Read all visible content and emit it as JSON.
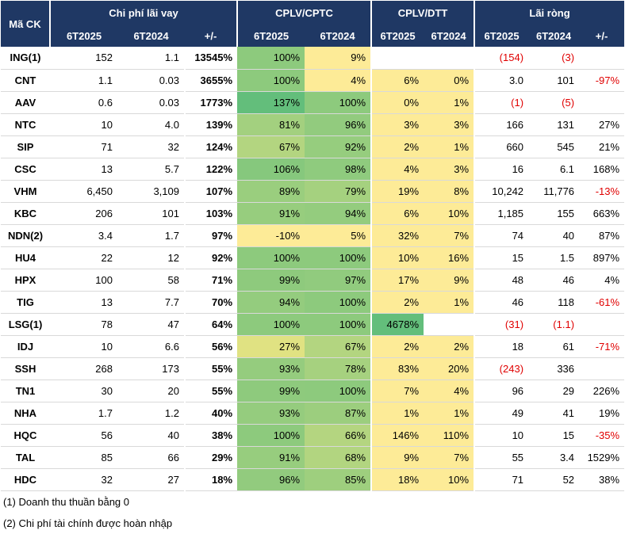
{
  "header": {
    "ma_ck": "Mã CK",
    "group1": "Chi phí lãi vay",
    "group2": "CPLV/CPTC",
    "group3": "CPLV/DTT",
    "group4": "Lãi ròng",
    "sub": [
      "6T2025",
      "6T2024",
      "+/-",
      "6T2025",
      "6T2024",
      "6T2025",
      "6T2024",
      "6T2025",
      "6T2024",
      "+/-"
    ]
  },
  "rows": [
    {
      "ck": "ING(1)",
      "lv25": "152",
      "lv24": "1.1",
      "lvchg": "13545%",
      "cptc25": "100%",
      "cptc24": "9%",
      "dtt25": "",
      "dtt24": "",
      "lr25": "(154)",
      "lr24": "(3)",
      "lrchg": ""
    },
    {
      "ck": "CNT",
      "lv25": "1.1",
      "lv24": "0.03",
      "lvchg": "3655%",
      "cptc25": "100%",
      "cptc24": "4%",
      "dtt25": "6%",
      "dtt24": "0%",
      "lr25": "3.0",
      "lr24": "101",
      "lrchg": "-97%"
    },
    {
      "ck": "AAV",
      "lv25": "0.6",
      "lv24": "0.03",
      "lvchg": "1773%",
      "cptc25": "137%",
      "cptc24": "100%",
      "dtt25": "0%",
      "dtt24": "1%",
      "lr25": "(1)",
      "lr24": "(5)",
      "lrchg": ""
    },
    {
      "ck": "NTC",
      "lv25": "10",
      "lv24": "4.0",
      "lvchg": "139%",
      "cptc25": "81%",
      "cptc24": "96%",
      "dtt25": "3%",
      "dtt24": "3%",
      "lr25": "166",
      "lr24": "131",
      "lrchg": "27%"
    },
    {
      "ck": "SIP",
      "lv25": "71",
      "lv24": "32",
      "lvchg": "124%",
      "cptc25": "67%",
      "cptc24": "92%",
      "dtt25": "2%",
      "dtt24": "1%",
      "lr25": "660",
      "lr24": "545",
      "lrchg": "21%"
    },
    {
      "ck": "CSC",
      "lv25": "13",
      "lv24": "5.7",
      "lvchg": "122%",
      "cptc25": "106%",
      "cptc24": "98%",
      "dtt25": "4%",
      "dtt24": "3%",
      "lr25": "16",
      "lr24": "6.1",
      "lrchg": "168%"
    },
    {
      "ck": "VHM",
      "lv25": "6,450",
      "lv24": "3,109",
      "lvchg": "107%",
      "cptc25": "89%",
      "cptc24": "79%",
      "dtt25": "19%",
      "dtt24": "8%",
      "lr25": "10,242",
      "lr24": "11,776",
      "lrchg": "-13%"
    },
    {
      "ck": "KBC",
      "lv25": "206",
      "lv24": "101",
      "lvchg": "103%",
      "cptc25": "91%",
      "cptc24": "94%",
      "dtt25": "6%",
      "dtt24": "10%",
      "lr25": "1,185",
      "lr24": "155",
      "lrchg": "663%"
    },
    {
      "ck": "NDN(2)",
      "lv25": "3.4",
      "lv24": "1.7",
      "lvchg": "97%",
      "cptc25": "-10%",
      "cptc24": "5%",
      "dtt25": "32%",
      "dtt24": "7%",
      "lr25": "74",
      "lr24": "40",
      "lrchg": "87%"
    },
    {
      "ck": "HU4",
      "lv25": "22",
      "lv24": "12",
      "lvchg": "92%",
      "cptc25": "100%",
      "cptc24": "100%",
      "dtt25": "10%",
      "dtt24": "16%",
      "lr25": "15",
      "lr24": "1.5",
      "lrchg": "897%"
    },
    {
      "ck": "HPX",
      "lv25": "100",
      "lv24": "58",
      "lvchg": "71%",
      "cptc25": "99%",
      "cptc24": "97%",
      "dtt25": "17%",
      "dtt24": "9%",
      "lr25": "48",
      "lr24": "46",
      "lrchg": "4%"
    },
    {
      "ck": "TIG",
      "lv25": "13",
      "lv24": "7.7",
      "lvchg": "70%",
      "cptc25": "94%",
      "cptc24": "100%",
      "dtt25": "2%",
      "dtt24": "1%",
      "lr25": "46",
      "lr24": "118",
      "lrchg": "-61%"
    },
    {
      "ck": "LSG(1)",
      "lv25": "78",
      "lv24": "47",
      "lvchg": "64%",
      "cptc25": "100%",
      "cptc24": "100%",
      "dtt25": "4678%",
      "dtt24": "",
      "lr25": "(31)",
      "lr24": "(1.1)",
      "lrchg": ""
    },
    {
      "ck": "IDJ",
      "lv25": "10",
      "lv24": "6.6",
      "lvchg": "56%",
      "cptc25": "27%",
      "cptc24": "67%",
      "dtt25": "2%",
      "dtt24": "2%",
      "lr25": "18",
      "lr24": "61",
      "lrchg": "-71%"
    },
    {
      "ck": "SSH",
      "lv25": "268",
      "lv24": "173",
      "lvchg": "55%",
      "cptc25": "93%",
      "cptc24": "78%",
      "dtt25": "83%",
      "dtt24": "20%",
      "lr25": "(243)",
      "lr24": "336",
      "lrchg": ""
    },
    {
      "ck": "TN1",
      "lv25": "30",
      "lv24": "20",
      "lvchg": "55%",
      "cptc25": "99%",
      "cptc24": "100%",
      "dtt25": "7%",
      "dtt24": "4%",
      "lr25": "96",
      "lr24": "29",
      "lrchg": "226%"
    },
    {
      "ck": "NHA",
      "lv25": "1.7",
      "lv24": "1.2",
      "lvchg": "40%",
      "cptc25": "93%",
      "cptc24": "87%",
      "dtt25": "1%",
      "dtt24": "1%",
      "lr25": "49",
      "lr24": "41",
      "lrchg": "19%"
    },
    {
      "ck": "HQC",
      "lv25": "56",
      "lv24": "40",
      "lvchg": "38%",
      "cptc25": "100%",
      "cptc24": "66%",
      "dtt25": "146%",
      "dtt24": "110%",
      "lr25": "10",
      "lr24": "15",
      "lrchg": "-35%"
    },
    {
      "ck": "TAL",
      "lv25": "85",
      "lv24": "66",
      "lvchg": "29%",
      "cptc25": "91%",
      "cptc24": "68%",
      "dtt25": "9%",
      "dtt24": "7%",
      "lr25": "55",
      "lr24": "3.4",
      "lrchg": "1529%"
    },
    {
      "ck": "HDC",
      "lv25": "32",
      "lv24": "27",
      "lvchg": "18%",
      "cptc25": "96%",
      "cptc24": "85%",
      "dtt25": "18%",
      "dtt24": "10%",
      "lr25": "71",
      "lr24": "52",
      "lrchg": "38%"
    }
  ],
  "notes": [
    "(1) Doanh thu thuần bằng 0",
    "(2) Chi phí tài chính được hoàn nhập"
  ]
}
